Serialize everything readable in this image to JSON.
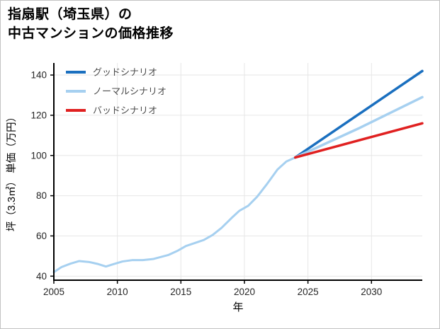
{
  "title": {
    "line1": "指扇駅（埼玉県）の",
    "line2": "中古マンションの価格推移"
  },
  "chart_data": {
    "type": "line",
    "title": "指扇駅（埼玉県）の中古マンションの価格推移",
    "xlabel": "年",
    "ylabel": "坪（3.3㎡） 単価（万円）",
    "xlim": [
      2005,
      2034
    ],
    "ylim": [
      38,
      146
    ],
    "xticks": [
      2005,
      2010,
      2015,
      2020,
      2025,
      2030
    ],
    "yticks": [
      40,
      60,
      80,
      100,
      120,
      140
    ],
    "grid": true,
    "legend_position": "top-left",
    "colors": {
      "grid": "#e6e6e6",
      "axis": "#000000",
      "tick_label": "#262626",
      "axis_label": "#000000",
      "legend_text": "#4d4d4d",
      "background": "#ffffff",
      "good": "#1a6fbf",
      "normal": "#a6d0f0",
      "bad": "#e02020"
    },
    "series": [
      {
        "id": "history",
        "in_legend": false,
        "color": "#a6d0f0",
        "width": 3,
        "x": [
          2005,
          2005.6,
          2006.3,
          2007,
          2007.8,
          2008.5,
          2009.1,
          2009.7,
          2010.4,
          2011.2,
          2012,
          2012.8,
          2013.4,
          2014,
          2014.7,
          2015.4,
          2016.1,
          2016.8,
          2017.5,
          2018.2,
          2019,
          2019.6,
          2020.3,
          2021,
          2021.8,
          2022.6,
          2023.3,
          2024
        ],
        "y": [
          42,
          44.5,
          46.2,
          47.5,
          47,
          46,
          44.8,
          46,
          47.3,
          48,
          48,
          48.5,
          49.5,
          50.5,
          52.5,
          55,
          56.5,
          58,
          60.5,
          64,
          69,
          72.5,
          75,
          79.5,
          86,
          93,
          97,
          99
        ]
      },
      {
        "id": "good",
        "name": "グッドシナリオ",
        "in_legend": true,
        "color": "#1a6fbf",
        "width": 3.5,
        "x": [
          2024,
          2034
        ],
        "y": [
          99,
          142
        ]
      },
      {
        "id": "normal",
        "name": "ノーマルシナリオ",
        "in_legend": true,
        "color": "#a6d0f0",
        "width": 3.5,
        "x": [
          2024,
          2029,
          2034
        ],
        "y": [
          99,
          113.5,
          129
        ]
      },
      {
        "id": "bad",
        "name": "バッドシナリオ",
        "in_legend": true,
        "color": "#e02020",
        "width": 3.5,
        "x": [
          2024,
          2034
        ],
        "y": [
          99,
          116
        ]
      }
    ]
  }
}
